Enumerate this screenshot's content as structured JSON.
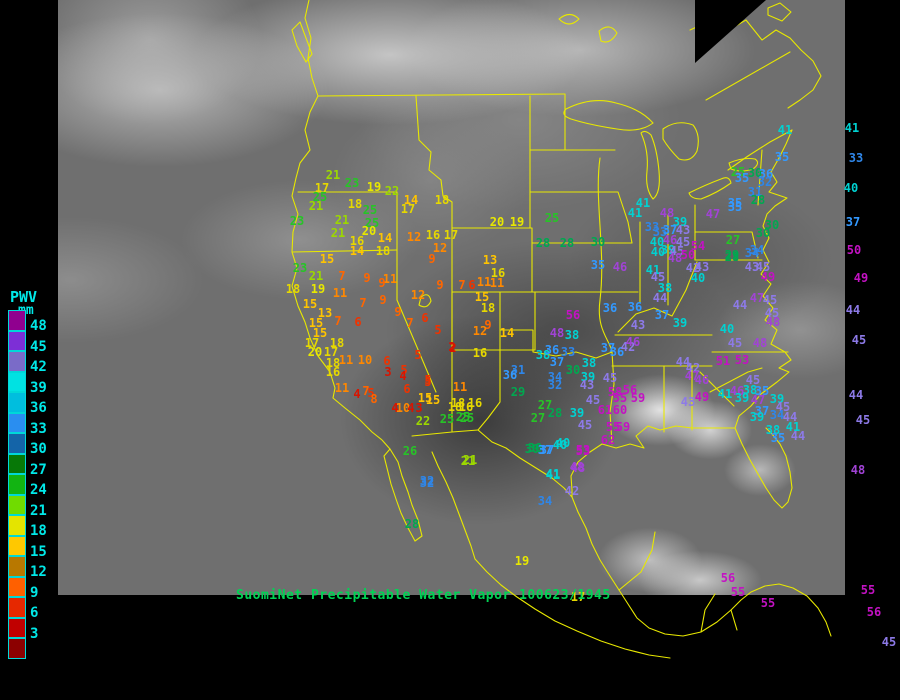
{
  "header": {
    "title": "SuomiNet Precipitable Water Vapor 100623/1945"
  },
  "legend": {
    "title": "PWV",
    "unit": "mm",
    "text_color": "#00e8e8",
    "entries": [
      {
        "label": "48",
        "color": "#90008f"
      },
      {
        "label": "45",
        "color": "#7d2fd6"
      },
      {
        "label": "42",
        "color": "#7a6bc8"
      },
      {
        "label": "39",
        "color": "#00e2e2"
      },
      {
        "label": "36",
        "color": "#00bede"
      },
      {
        "label": "33",
        "color": "#2a8ef0"
      },
      {
        "label": "30",
        "color": "#1464a8"
      },
      {
        "label": "27",
        "color": "#077807"
      },
      {
        "label": "24",
        "color": "#12b412"
      },
      {
        "label": "21",
        "color": "#70dc00"
      },
      {
        "label": "18",
        "color": "#e4e400"
      },
      {
        "label": "15",
        "color": "#ffc800"
      },
      {
        "label": "12",
        "color": "#b87800"
      },
      {
        "label": "9",
        "color": "#ff6000"
      },
      {
        "label": "6",
        "color": "#e62800"
      },
      {
        "label": "3",
        "color": "#c00000"
      },
      {
        "label": "",
        "color": "#8c0000"
      }
    ]
  },
  "map": {
    "boundary_color": "#e8e800",
    "background": "#000000",
    "title_color": "#00d455"
  },
  "palette": [
    {
      "max": 4,
      "color": "#d81400"
    },
    {
      "max": 6,
      "color": "#ee3300"
    },
    {
      "max": 9,
      "color": "#ff6600"
    },
    {
      "max": 12,
      "color": "#ff8800"
    },
    {
      "max": 15,
      "color": "#ffc400"
    },
    {
      "max": 18,
      "color": "#e6d800"
    },
    {
      "max": 20,
      "color": "#e8e800"
    },
    {
      "max": 22,
      "color": "#9cd800"
    },
    {
      "max": 27,
      "color": "#27c427"
    },
    {
      "max": 30,
      "color": "#00a850"
    },
    {
      "max": 34,
      "color": "#2f86e8"
    },
    {
      "max": 37,
      "color": "#3399ff"
    },
    {
      "max": 41,
      "color": "#00d2d2"
    },
    {
      "max": 45,
      "color": "#8d7ae8"
    },
    {
      "max": 48,
      "color": "#a143d6"
    },
    {
      "max": 999,
      "color": "#c312c3"
    }
  ],
  "stations": [
    [
      333,
      175,
      21
    ],
    [
      352,
      183,
      23
    ],
    [
      374,
      187,
      19
    ],
    [
      392,
      191,
      22
    ],
    [
      322,
      188,
      17
    ],
    [
      320,
      197,
      25
    ],
    [
      316,
      206,
      21
    ],
    [
      355,
      204,
      18
    ],
    [
      370,
      210,
      25
    ],
    [
      297,
      221,
      23
    ],
    [
      342,
      220,
      21
    ],
    [
      372,
      223,
      25
    ],
    [
      338,
      233,
      21
    ],
    [
      369,
      231,
      20
    ],
    [
      357,
      241,
      16
    ],
    [
      385,
      238,
      14
    ],
    [
      357,
      251,
      14
    ],
    [
      383,
      251,
      18
    ],
    [
      411,
      200,
      14
    ],
    [
      408,
      209,
      17
    ],
    [
      442,
      200,
      18
    ],
    [
      414,
      237,
      12
    ],
    [
      433,
      235,
      16
    ],
    [
      451,
      235,
      17
    ],
    [
      440,
      248,
      12
    ],
    [
      432,
      259,
      9
    ],
    [
      327,
      259,
      15
    ],
    [
      300,
      268,
      23
    ],
    [
      316,
      276,
      21
    ],
    [
      342,
      276,
      7
    ],
    [
      367,
      278,
      9
    ],
    [
      390,
      279,
      11
    ],
    [
      293,
      289,
      18
    ],
    [
      318,
      289,
      19
    ],
    [
      340,
      293,
      11
    ],
    [
      310,
      304,
      15
    ],
    [
      325,
      313,
      13
    ],
    [
      338,
      321,
      7
    ],
    [
      316,
      323,
      15
    ],
    [
      320,
      333,
      15
    ],
    [
      312,
      343,
      17
    ],
    [
      337,
      343,
      18
    ],
    [
      315,
      352,
      20
    ],
    [
      331,
      352,
      17
    ],
    [
      346,
      360,
      11
    ],
    [
      365,
      360,
      10
    ],
    [
      333,
      363,
      18
    ],
    [
      333,
      372,
      16
    ],
    [
      342,
      388,
      11
    ],
    [
      357,
      394,
      4
    ],
    [
      366,
      391,
      7
    ],
    [
      371,
      393,
      5
    ],
    [
      374,
      399,
      8
    ],
    [
      363,
      303,
      7
    ],
    [
      383,
      300,
      9
    ],
    [
      358,
      322,
      6
    ],
    [
      398,
      312,
      9
    ],
    [
      382,
      283,
      9
    ],
    [
      440,
      285,
      9
    ],
    [
      418,
      295,
      12
    ],
    [
      410,
      323,
      7
    ],
    [
      425,
      318,
      6
    ],
    [
      438,
      330,
      5
    ],
    [
      453,
      348,
      2
    ],
    [
      387,
      361,
      6
    ],
    [
      418,
      355,
      5
    ],
    [
      388,
      372,
      3
    ],
    [
      404,
      370,
      5
    ],
    [
      403,
      376,
      4
    ],
    [
      428,
      380,
      5
    ],
    [
      407,
      389,
      6
    ],
    [
      460,
      387,
      11
    ],
    [
      425,
      398,
      15
    ],
    [
      395,
      408,
      4
    ],
    [
      403,
      408,
      10
    ],
    [
      411,
      408,
      4
    ],
    [
      419,
      408,
      3
    ],
    [
      455,
      407,
      18
    ],
    [
      466,
      407,
      16
    ],
    [
      423,
      421,
      22
    ],
    [
      447,
      419,
      25
    ],
    [
      463,
      417,
      25
    ],
    [
      497,
      222,
      20
    ],
    [
      517,
      222,
      19
    ],
    [
      552,
      218,
      25
    ],
    [
      490,
      260,
      13
    ],
    [
      498,
      273,
      16
    ],
    [
      462,
      285,
      7
    ],
    [
      472,
      285,
      6
    ],
    [
      484,
      282,
      11
    ],
    [
      497,
      283,
      11
    ],
    [
      482,
      297,
      15
    ],
    [
      488,
      308,
      18
    ],
    [
      488,
      325,
      9
    ],
    [
      480,
      331,
      12
    ],
    [
      507,
      333,
      14
    ],
    [
      452,
      347,
      2
    ],
    [
      480,
      353,
      16
    ],
    [
      433,
      400,
      15
    ],
    [
      428,
      382,
      5
    ],
    [
      458,
      403,
      18
    ],
    [
      475,
      403,
      16
    ],
    [
      467,
      418,
      25
    ],
    [
      543,
      243,
      28
    ],
    [
      567,
      243,
      28
    ],
    [
      598,
      242,
      30
    ],
    [
      598,
      265,
      35
    ],
    [
      620,
      267,
      46
    ],
    [
      610,
      308,
      36
    ],
    [
      635,
      307,
      36
    ],
    [
      573,
      315,
      56
    ],
    [
      557,
      333,
      48
    ],
    [
      572,
      335,
      38
    ],
    [
      518,
      370,
      31
    ],
    [
      510,
      375,
      36
    ],
    [
      543,
      355,
      38
    ],
    [
      552,
      350,
      36
    ],
    [
      568,
      352,
      33
    ],
    [
      557,
      362,
      37
    ],
    [
      573,
      370,
      30
    ],
    [
      589,
      363,
      38
    ],
    [
      555,
      377,
      34
    ],
    [
      588,
      377,
      39
    ],
    [
      555,
      385,
      32
    ],
    [
      587,
      385,
      43
    ],
    [
      610,
      378,
      45
    ],
    [
      518,
      392,
      29
    ],
    [
      545,
      405,
      27
    ],
    [
      555,
      413,
      28
    ],
    [
      538,
      418,
      27
    ],
    [
      577,
      413,
      39
    ],
    [
      593,
      400,
      45
    ],
    [
      615,
      392,
      58
    ],
    [
      630,
      390,
      56
    ],
    [
      620,
      398,
      55
    ],
    [
      638,
      398,
      59
    ],
    [
      605,
      410,
      61
    ],
    [
      620,
      410,
      60
    ],
    [
      585,
      425,
      45
    ],
    [
      613,
      427,
      55
    ],
    [
      623,
      427,
      59
    ],
    [
      608,
      440,
      62
    ],
    [
      583,
      450,
      53
    ],
    [
      577,
      467,
      48
    ],
    [
      563,
      443,
      40
    ],
    [
      547,
      450,
      37
    ],
    [
      535,
      448,
      30
    ],
    [
      553,
      475,
      41
    ],
    [
      470,
      460,
      21
    ],
    [
      427,
      483,
      32
    ],
    [
      643,
      203,
      41
    ],
    [
      635,
      213,
      41
    ],
    [
      667,
      213,
      48
    ],
    [
      652,
      227,
      33
    ],
    [
      680,
      222,
      39
    ],
    [
      660,
      232,
      33
    ],
    [
      670,
      230,
      37
    ],
    [
      683,
      230,
      43
    ],
    [
      657,
      242,
      40
    ],
    [
      670,
      240,
      46
    ],
    [
      683,
      242,
      45
    ],
    [
      658,
      252,
      40
    ],
    [
      668,
      250,
      39
    ],
    [
      677,
      251,
      45
    ],
    [
      675,
      258,
      48
    ],
    [
      688,
      255,
      50
    ],
    [
      698,
      246,
      54
    ],
    [
      713,
      214,
      47
    ],
    [
      735,
      203,
      35
    ],
    [
      733,
      240,
      27
    ],
    [
      732,
      257,
      28
    ],
    [
      752,
      253,
      34
    ],
    [
      653,
      270,
      41
    ],
    [
      658,
      277,
      45
    ],
    [
      665,
      288,
      38
    ],
    [
      660,
      298,
      44
    ],
    [
      662,
      315,
      37
    ],
    [
      680,
      323,
      39
    ],
    [
      638,
      325,
      43
    ],
    [
      693,
      268,
      42
    ],
    [
      702,
      267,
      43
    ],
    [
      698,
      278,
      40
    ],
    [
      617,
      352,
      36
    ],
    [
      628,
      347,
      42
    ],
    [
      608,
      348,
      37
    ],
    [
      633,
      342,
      46
    ],
    [
      785,
      130,
      41
    ],
    [
      782,
      157,
      35
    ],
    [
      738,
      172,
      25
    ],
    [
      755,
      173,
      30
    ],
    [
      766,
      174,
      36
    ],
    [
      742,
      178,
      35
    ],
    [
      765,
      182,
      32
    ],
    [
      755,
      192,
      31
    ],
    [
      758,
      200,
      28
    ],
    [
      735,
      207,
      35
    ],
    [
      772,
      225,
      30
    ],
    [
      763,
      233,
      30
    ],
    [
      757,
      250,
      34
    ],
    [
      732,
      255,
      29
    ],
    [
      768,
      277,
      49
    ],
    [
      763,
      267,
      45
    ],
    [
      752,
      267,
      43
    ],
    [
      740,
      305,
      44
    ],
    [
      757,
      298,
      47
    ],
    [
      770,
      300,
      45
    ],
    [
      772,
      313,
      45
    ],
    [
      773,
      322,
      48
    ],
    [
      727,
      329,
      40
    ],
    [
      735,
      343,
      45
    ],
    [
      760,
      343,
      48
    ],
    [
      683,
      362,
      44
    ],
    [
      693,
      368,
      42
    ],
    [
      692,
      376,
      47
    ],
    [
      702,
      380,
      46
    ],
    [
      723,
      361,
      51
    ],
    [
      742,
      360,
      53
    ],
    [
      753,
      380,
      45
    ],
    [
      702,
      397,
      49
    ],
    [
      688,
      402,
      43
    ],
    [
      725,
      394,
      41
    ],
    [
      737,
      391,
      46
    ],
    [
      750,
      390,
      38
    ],
    [
      762,
      391,
      35
    ],
    [
      742,
      398,
      39
    ],
    [
      758,
      400,
      47
    ],
    [
      777,
      399,
      39
    ],
    [
      783,
      407,
      45
    ],
    [
      762,
      411,
      37
    ],
    [
      777,
      415,
      34
    ],
    [
      790,
      417,
      44
    ],
    [
      757,
      417,
      39
    ],
    [
      773,
      430,
      38
    ],
    [
      793,
      427,
      41
    ],
    [
      778,
      438,
      35
    ],
    [
      798,
      436,
      44
    ],
    [
      852,
      128,
      41
    ],
    [
      856,
      158,
      33
    ],
    [
      851,
      188,
      40
    ],
    [
      853,
      222,
      37
    ],
    [
      854,
      250,
      50
    ],
    [
      861,
      278,
      49
    ],
    [
      853,
      310,
      44
    ],
    [
      859,
      340,
      45
    ],
    [
      856,
      395,
      44
    ],
    [
      863,
      420,
      45
    ],
    [
      858,
      470,
      48
    ],
    [
      868,
      590,
      55
    ],
    [
      874,
      612,
      56
    ],
    [
      889,
      642,
      45
    ],
    [
      410,
      451,
      26
    ],
    [
      468,
      461,
      21
    ],
    [
      427,
      481,
      32
    ],
    [
      412,
      524,
      28
    ],
    [
      545,
      501,
      34
    ],
    [
      522,
      561,
      19
    ],
    [
      553,
      474,
      41
    ],
    [
      572,
      491,
      42
    ],
    [
      578,
      468,
      48
    ],
    [
      583,
      451,
      53
    ],
    [
      532,
      449,
      30
    ],
    [
      545,
      450,
      37
    ],
    [
      560,
      445,
      40
    ],
    [
      728,
      578,
      56
    ],
    [
      738,
      592,
      55
    ],
    [
      768,
      603,
      55
    ],
    [
      578,
      597,
      17
    ]
  ]
}
